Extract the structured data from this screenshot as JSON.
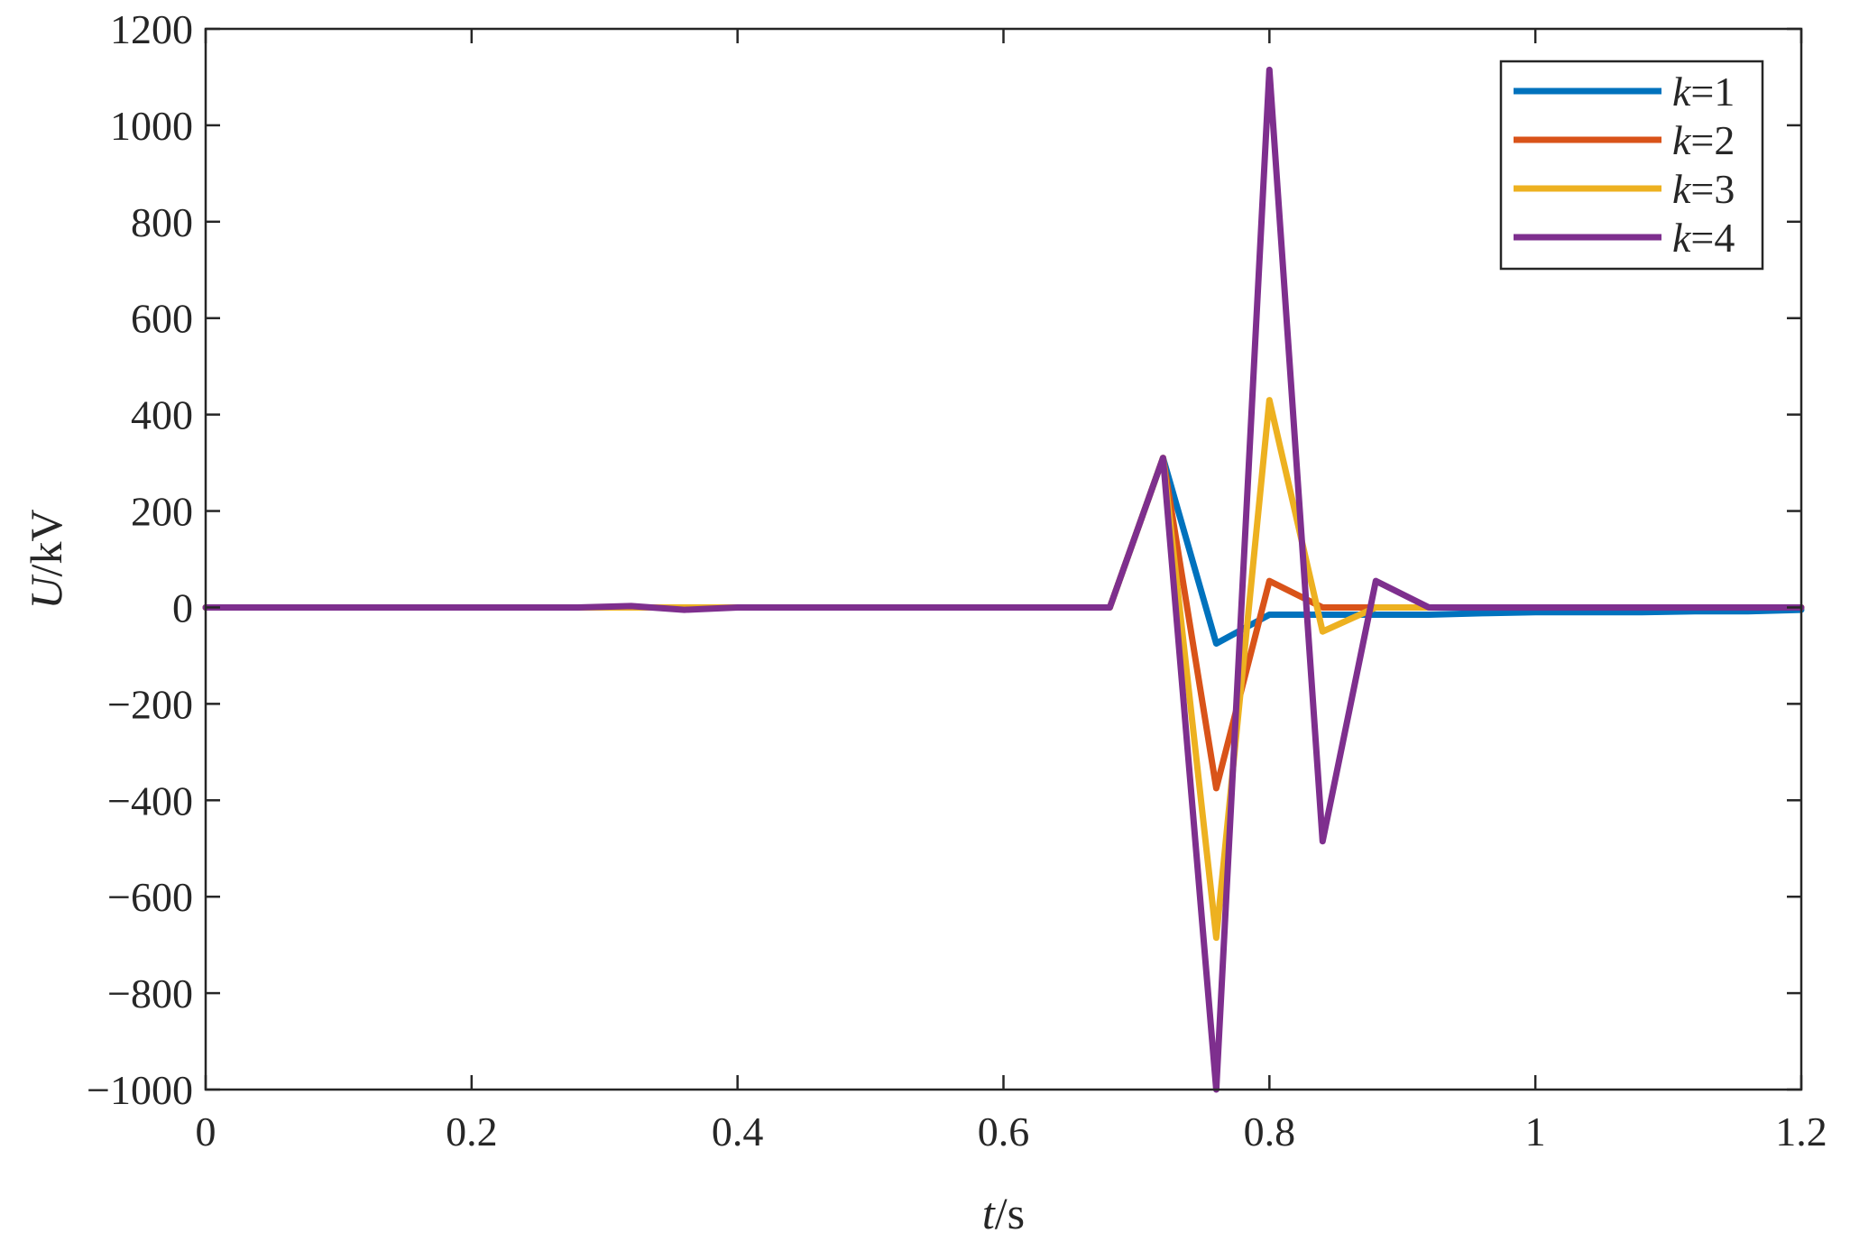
{
  "chart_data": {
    "type": "line",
    "xlabel": {
      "italic": "t",
      "rest": "/s"
    },
    "ylabel": {
      "italic": "U",
      "rest": "/kV"
    },
    "xlim": [
      0,
      1.2
    ],
    "ylim": [
      -1000,
      1200
    ],
    "x_ticks": [
      0,
      0.2,
      0.4,
      0.6,
      0.8,
      1,
      1.2
    ],
    "x_tick_labels": [
      "0",
      "0.2",
      "0.4",
      "0.6",
      "0.8",
      "1",
      "1.2"
    ],
    "y_ticks": [
      -1000,
      -800,
      -600,
      -400,
      -200,
      0,
      200,
      400,
      600,
      800,
      1000,
      1200
    ],
    "y_tick_labels": [
      "−1000",
      "−800",
      "−600",
      "−400",
      "−200",
      "0",
      "200",
      "400",
      "600",
      "800",
      "1000",
      "1200"
    ],
    "grid": false,
    "box": true,
    "legend_position": "top-right",
    "x": [
      0,
      0.04,
      0.08,
      0.12,
      0.16,
      0.2,
      0.24,
      0.28,
      0.32,
      0.36,
      0.4,
      0.44,
      0.48,
      0.52,
      0.56,
      0.6,
      0.64,
      0.68,
      0.72,
      0.76,
      0.8,
      0.84,
      0.88,
      0.92,
      0.96,
      1.0,
      1.04,
      1.08,
      1.12,
      1.16,
      1.2
    ],
    "series": [
      {
        "name": "k=1",
        "name_italic": "k",
        "name_rest": "=1",
        "color": "#0072BD",
        "values": [
          0,
          0,
          0,
          0,
          0,
          0,
          0,
          0,
          0,
          0,
          0,
          0,
          0,
          0,
          0,
          0,
          0,
          0,
          310,
          -75,
          -15,
          -15,
          -15,
          -15,
          -12,
          -10,
          -10,
          -10,
          -8,
          -8,
          -5
        ]
      },
      {
        "name": "k=2",
        "name_italic": "k",
        "name_rest": "=2",
        "color": "#D95319",
        "values": [
          0,
          0,
          0,
          0,
          0,
          0,
          0,
          0,
          0,
          0,
          0,
          0,
          0,
          0,
          0,
          0,
          0,
          0,
          310,
          -375,
          55,
          0,
          0,
          0,
          0,
          0,
          0,
          0,
          0,
          0,
          0
        ]
      },
      {
        "name": "k=3",
        "name_italic": "k",
        "name_rest": "=3",
        "color": "#EDB120",
        "values": [
          0,
          0,
          0,
          0,
          0,
          0,
          0,
          0,
          0,
          0,
          0,
          0,
          0,
          0,
          0,
          0,
          0,
          0,
          310,
          -685,
          430,
          -50,
          0,
          0,
          0,
          0,
          0,
          0,
          0,
          0,
          0
        ]
      },
      {
        "name": "k=4",
        "name_italic": "k",
        "name_rest": "=4",
        "color": "#7E2F8E",
        "values": [
          0,
          0,
          0,
          0,
          0,
          0,
          0,
          0,
          3,
          -5,
          0,
          0,
          0,
          0,
          0,
          0,
          0,
          0,
          310,
          -1000,
          1115,
          -485,
          55,
          0,
          0,
          0,
          0,
          0,
          0,
          0,
          0
        ]
      }
    ]
  }
}
